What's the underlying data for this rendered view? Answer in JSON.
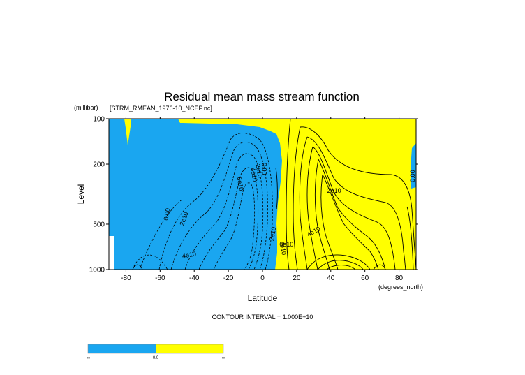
{
  "chart_data": {
    "type": "contour",
    "title": "Residual mean mass stream function",
    "subtitle": "[STRM_RMEAN_1976-10_NCEP.nc]",
    "xlabel": "Latitude",
    "xunits": "(degrees_north)",
    "ylabel": "Level",
    "yunits": "(millibar)",
    "xlim": [
      -90,
      90
    ],
    "ylim": [
      100,
      1000
    ],
    "yscale": "log",
    "x_ticks": [
      -80,
      -60,
      -40,
      -20,
      0,
      20,
      40,
      60,
      80
    ],
    "y_ticks": [
      100,
      200,
      500,
      1000
    ],
    "contour_interval_text": "CONTOUR INTERVAL = 1.000E+10",
    "contour_labels": [
      {
        "text": "0.00",
        "lat": -56,
        "lev": 430,
        "angle": -80
      },
      {
        "text": "2e10",
        "lat": -46,
        "lev": 460,
        "angle": -70
      },
      {
        "text": "4e10",
        "lat": -43,
        "lev": 800,
        "angle": -10
      },
      {
        "text": "6e10",
        "lat": -13,
        "lev": 270,
        "angle": 80
      },
      {
        "text": "4e10",
        "lat": -5,
        "lev": 235,
        "angle": 80
      },
      {
        "text": "2e10",
        "lat": -2,
        "lev": 222,
        "angle": 80
      },
      {
        "text": "0.00",
        "lat": 1,
        "lev": 215,
        "angle": 90
      },
      {
        "text": "2e10",
        "lat": 6,
        "lev": 580,
        "angle": -80
      },
      {
        "text": "4e10",
        "lat": 12,
        "lev": 720,
        "angle": 80
      },
      {
        "text": "2e10",
        "lat": 42,
        "lev": 300,
        "angle": 0
      },
      {
        "text": "4e10",
        "lat": 30,
        "lev": 560,
        "angle": -30
      },
      {
        "text": "6e10",
        "lat": 14,
        "lev": 680,
        "angle": 0
      },
      {
        "text": "0.00",
        "lat": 88,
        "lev": 240,
        "angle": -90
      }
    ],
    "shading": [
      {
        "range": "negative",
        "color": "#1aa6f0"
      },
      {
        "range": "positive",
        "color": "#ffff00"
      }
    ],
    "colorbar_labels": [
      "-∞",
      "0.0",
      "∞"
    ]
  },
  "colors": {
    "negative": "#1aa6f0",
    "positive": "#ffff00",
    "lines": "#000000"
  }
}
